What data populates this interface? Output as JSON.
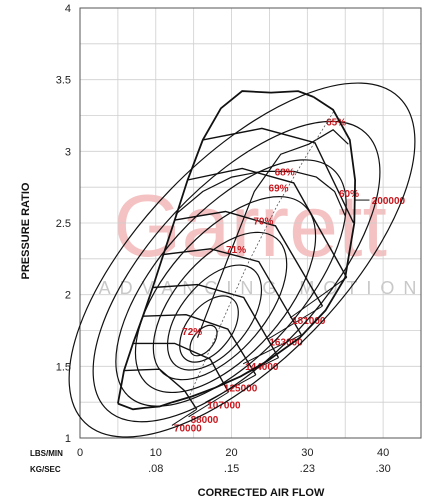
{
  "watermark": {
    "brand": "Garrett",
    "tagline": "ADVANCING MOTION"
  },
  "chart_data": {
    "type": "line",
    "xlabel": "CORRECTED AIR FLOW",
    "ylabel": "PRESSURE RATIO",
    "xlim": [
      0,
      45
    ],
    "ylim": [
      1,
      4
    ],
    "grid": true,
    "x_ticks_lbs": [
      "0",
      "10",
      "20",
      "30",
      "40"
    ],
    "x_ticks_kg": [
      ".08",
      ".15",
      ".23",
      ".30"
    ],
    "y_ticks": [
      "1",
      "1.5",
      "2",
      "2.5",
      "3",
      "3.5",
      "4"
    ],
    "x_unit_primary": "LBS/MIN",
    "x_unit_secondary": "KG/SEC",
    "efficiency_islands": [
      {
        "label": "72%",
        "x": 14.8,
        "y": 1.72
      },
      {
        "label": "71%",
        "x": 20.6,
        "y": 2.29
      },
      {
        "label": "70%",
        "x": 24.2,
        "y": 2.49
      },
      {
        "label": "69%",
        "x": 26.2,
        "y": 2.72
      },
      {
        "label": "68%",
        "x": 27.0,
        "y": 2.83
      },
      {
        "label": "65%",
        "x": 33.8,
        "y": 3.18
      },
      {
        "label": "60%",
        "x": 35.5,
        "y": 2.68
      }
    ],
    "speed_lines": [
      {
        "label": "70000",
        "rpm": 70000
      },
      {
        "label": "88000",
        "rpm": 88000
      },
      {
        "label": "107000",
        "rpm": 107000
      },
      {
        "label": "125000",
        "rpm": 125000
      },
      {
        "label": "144000",
        "rpm": 144000
      },
      {
        "label": "163000",
        "rpm": 163000
      },
      {
        "label": "181000",
        "rpm": 181000
      },
      {
        "label": "200000",
        "rpm": 200000
      }
    ],
    "surge_line": [
      [
        5.0,
        1.24
      ],
      [
        5.8,
        1.47
      ],
      [
        7.0,
        1.66
      ],
      [
        8.3,
        1.85
      ],
      [
        9.6,
        2.05
      ],
      [
        11.0,
        2.28
      ],
      [
        12.5,
        2.52
      ],
      [
        14.2,
        2.8
      ],
      [
        16.2,
        3.08
      ],
      [
        18.6,
        3.3
      ],
      [
        21.4,
        3.42
      ],
      [
        25.2,
        3.41
      ],
      [
        28.8,
        3.42
      ],
      [
        30.8,
        3.38
      ]
    ],
    "choke_line": [
      [
        30.8,
        3.38
      ],
      [
        33.4,
        3.29
      ],
      [
        35.6,
        3.08
      ],
      [
        36.3,
        2.8
      ],
      [
        36.2,
        2.5
      ],
      [
        35.0,
        2.12
      ],
      [
        32.4,
        1.89
      ],
      [
        29.0,
        1.7
      ],
      [
        24.8,
        1.54
      ],
      [
        21.2,
        1.43
      ],
      [
        17.8,
        1.35
      ],
      [
        14.8,
        1.29
      ],
      [
        12.2,
        1.25
      ],
      [
        10.5,
        1.22
      ],
      [
        8.5,
        1.21
      ],
      [
        7.0,
        1.2
      ],
      [
        5.0,
        1.24
      ]
    ]
  }
}
